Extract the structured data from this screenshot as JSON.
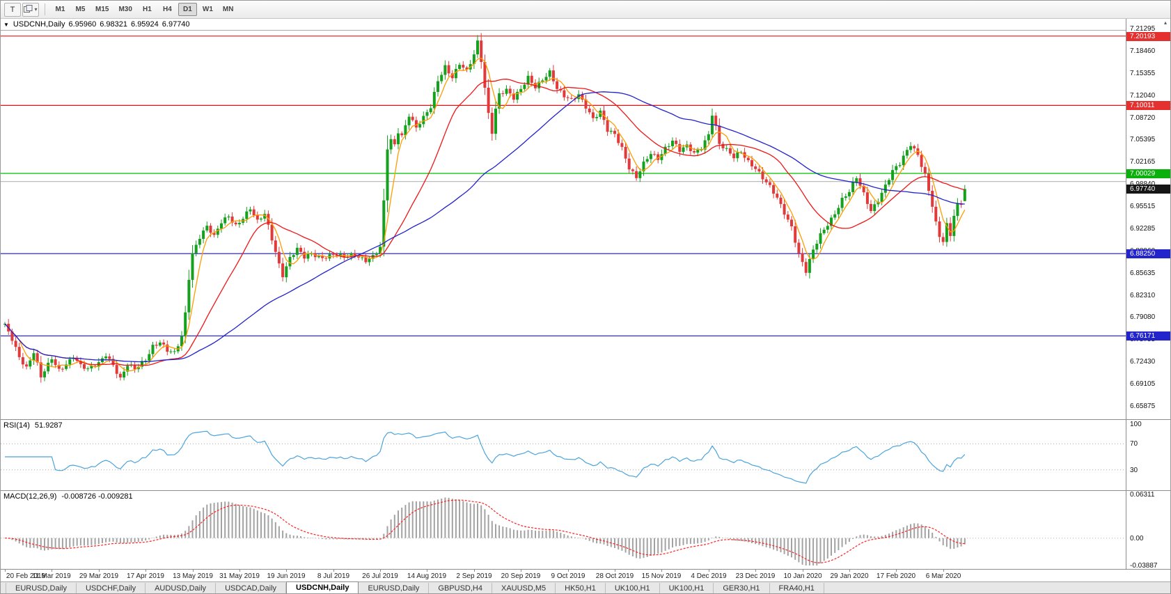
{
  "toolbar": {
    "t_button": "T",
    "cascade_dropdown": "▾",
    "timeframes": [
      "M1",
      "M5",
      "M15",
      "M30",
      "H1",
      "H4",
      "D1",
      "W1",
      "MN"
    ],
    "active_timeframe": "D1"
  },
  "chart_header": {
    "collapse_icon": "▼",
    "symbol": "USDCNH,Daily",
    "open": "6.95960",
    "high": "6.98321",
    "low": "6.95924",
    "close": "6.97740"
  },
  "chart_data": {
    "type": "candlestick",
    "symbol": "USDCNH",
    "timeframe": "Daily",
    "bars": 267,
    "price_ticks": [
      "7.21295",
      "7.18460",
      "7.15355",
      "7.12040",
      "7.08720",
      "7.05395",
      "7.02165",
      "6.98840",
      "6.95515",
      "6.92285",
      "6.88960",
      "6.85635",
      "6.82310",
      "6.79080",
      "6.75755",
      "6.72430",
      "6.69105",
      "6.65875"
    ],
    "current_price": "6.97740",
    "current_price_badge_color": "#161616",
    "candle_up_color": "#15a01e",
    "candle_down_color": "#e03a3a",
    "horizontal_lines": [
      {
        "price": 7.20193,
        "label": "7.20193",
        "color": "#ee1111",
        "badge": "#e53030"
      },
      {
        "price": 7.10011,
        "label": "7.10011",
        "color": "#ee1111",
        "badge": "#e53030"
      },
      {
        "price": 7.00029,
        "label": "7.00029",
        "color": "#00c000",
        "badge": "#0cb00c"
      },
      {
        "price": 6.9884,
        "label": "",
        "color": "#bcbcbc",
        "badge": null
      },
      {
        "price": 6.8825,
        "label": "6.88250",
        "color": "#1414d8",
        "badge": "#2424cc"
      },
      {
        "price": 6.76171,
        "label": "6.76171",
        "color": "#1414d8",
        "badge": "#2424cc"
      }
    ],
    "moving_averages": [
      {
        "period": 5,
        "color": "#ff9c00",
        "name": "fast-ma-orange"
      },
      {
        "period": 20,
        "color": "#f01616",
        "name": "mid-ma-red"
      },
      {
        "period": 55,
        "color": "#2222cc",
        "name": "slow-ma-blue"
      }
    ],
    "close_anchors": [
      [
        0,
        6.776
      ],
      [
        2,
        6.757
      ],
      [
        4,
        6.732
      ],
      [
        6,
        6.716
      ],
      [
        8,
        6.738
      ],
      [
        10,
        6.7
      ],
      [
        12,
        6.718
      ],
      [
        13,
        6.728
      ],
      [
        15,
        6.712
      ],
      [
        17,
        6.722
      ],
      [
        19,
        6.732
      ],
      [
        21,
        6.717
      ],
      [
        23,
        6.711
      ],
      [
        26,
        6.722
      ],
      [
        28,
        6.736
      ],
      [
        30,
        6.72
      ],
      [
        32,
        6.698
      ],
      [
        34,
        6.718
      ],
      [
        36,
        6.712
      ],
      [
        39,
        6.728
      ],
      [
        41,
        6.748
      ],
      [
        43,
        6.753
      ],
      [
        45,
        6.739
      ],
      [
        47,
        6.735
      ],
      [
        49,
        6.76
      ],
      [
        50,
        6.795
      ],
      [
        51,
        6.848
      ],
      [
        52,
        6.884
      ],
      [
        54,
        6.908
      ],
      [
        56,
        6.922
      ],
      [
        58,
        6.906
      ],
      [
        60,
        6.928
      ],
      [
        62,
        6.938
      ],
      [
        64,
        6.925
      ],
      [
        66,
        6.936
      ],
      [
        68,
        6.948
      ],
      [
        70,
        6.928
      ],
      [
        72,
        6.94
      ],
      [
        74,
        6.905
      ],
      [
        76,
        6.868
      ],
      [
        77,
        6.852
      ],
      [
        79,
        6.876
      ],
      [
        81,
        6.888
      ],
      [
        83,
        6.876
      ],
      [
        85,
        6.882
      ],
      [
        88,
        6.878
      ],
      [
        91,
        6.881
      ],
      [
        94,
        6.876
      ],
      [
        97,
        6.881
      ],
      [
        100,
        6.874
      ],
      [
        102,
        6.879
      ],
      [
        104,
        6.891
      ],
      [
        105,
        6.957
      ],
      [
        106,
        7.036
      ],
      [
        107,
        7.048
      ],
      [
        108,
        7.041
      ],
      [
        109,
        7.062
      ],
      [
        110,
        7.056
      ],
      [
        112,
        7.088
      ],
      [
        114,
        7.068
      ],
      [
        116,
        7.081
      ],
      [
        118,
        7.096
      ],
      [
        120,
        7.136
      ],
      [
        122,
        7.158
      ],
      [
        124,
        7.143
      ],
      [
        126,
        7.162
      ],
      [
        128,
        7.149
      ],
      [
        130,
        7.173
      ],
      [
        131,
        7.192
      ],
      [
        132,
        7.166
      ],
      [
        133,
        7.126
      ],
      [
        134,
        7.089
      ],
      [
        135,
        7.063
      ],
      [
        136,
        7.096
      ],
      [
        137,
        7.118
      ],
      [
        139,
        7.122
      ],
      [
        141,
        7.109
      ],
      [
        143,
        7.123
      ],
      [
        145,
        7.142
      ],
      [
        147,
        7.129
      ],
      [
        149,
        7.139
      ],
      [
        151,
        7.148
      ],
      [
        153,
        7.123
      ],
      [
        155,
        7.113
      ],
      [
        157,
        7.109
      ],
      [
        159,
        7.118
      ],
      [
        161,
        7.099
      ],
      [
        163,
        7.079
      ],
      [
        165,
        7.089
      ],
      [
        167,
        7.063
      ],
      [
        169,
        7.059
      ],
      [
        171,
        7.039
      ],
      [
        173,
        7.009
      ],
      [
        175,
        6.993
      ],
      [
        177,
        7.013
      ],
      [
        179,
        7.029
      ],
      [
        181,
        7.023
      ],
      [
        183,
        7.039
      ],
      [
        185,
        7.049
      ],
      [
        187,
        7.033
      ],
      [
        189,
        7.039
      ],
      [
        191,
        7.029
      ],
      [
        193,
        7.039
      ],
      [
        195,
        7.059
      ],
      [
        196,
        7.089
      ],
      [
        197,
        7.069
      ],
      [
        198,
        7.043
      ],
      [
        200,
        7.033
      ],
      [
        202,
        7.023
      ],
      [
        204,
        7.033
      ],
      [
        206,
        7.019
      ],
      [
        208,
        7.009
      ],
      [
        210,
        6.993
      ],
      [
        212,
        6.979
      ],
      [
        214,
        6.963
      ],
      [
        216,
        6.943
      ],
      [
        218,
        6.923
      ],
      [
        220,
        6.883
      ],
      [
        222,
        6.856
      ],
      [
        224,
        6.886
      ],
      [
        226,
        6.909
      ],
      [
        228,
        6.926
      ],
      [
        230,
        6.943
      ],
      [
        232,
        6.963
      ],
      [
        234,
        6.973
      ],
      [
        236,
        6.993
      ],
      [
        238,
        6.969
      ],
      [
        240,
        6.946
      ],
      [
        242,
        6.963
      ],
      [
        244,
        6.983
      ],
      [
        246,
        7.003
      ],
      [
        248,
        7.013
      ],
      [
        250,
        7.033
      ],
      [
        251,
        7.043
      ],
      [
        253,
        7.029
      ],
      [
        255,
        6.999
      ],
      [
        256,
        6.976
      ],
      [
        257,
        6.953
      ],
      [
        258,
        6.926
      ],
      [
        259,
        6.906
      ],
      [
        260,
        6.899
      ],
      [
        261,
        6.923
      ],
      [
        262,
        6.909
      ],
      [
        263,
        6.939
      ],
      [
        264,
        6.955
      ],
      [
        265,
        6.958
      ],
      [
        266,
        6.9774
      ]
    ],
    "last_bar": {
      "open": 6.9596,
      "high": 6.98321,
      "low": 6.95924,
      "close": 6.9774
    },
    "date_labels": [
      {
        "i": 0,
        "label": "20 Feb 2019"
      },
      {
        "i": 13,
        "label": "11 Mar 2019"
      },
      {
        "i": 26,
        "label": "29 Mar 2019"
      },
      {
        "i": 39,
        "label": "17 Apr 2019"
      },
      {
        "i": 52,
        "label": "13 May 2019"
      },
      {
        "i": 65,
        "label": "31 May 2019"
      },
      {
        "i": 78,
        "label": "19 Jun 2019"
      },
      {
        "i": 91,
        "label": "8 Jul 2019"
      },
      {
        "i": 104,
        "label": "26 Jul 2019"
      },
      {
        "i": 117,
        "label": "14 Aug 2019"
      },
      {
        "i": 130,
        "label": "2 Sep 2019"
      },
      {
        "i": 143,
        "label": "20 Sep 2019"
      },
      {
        "i": 156,
        "label": "9 Oct 2019"
      },
      {
        "i": 169,
        "label": "28 Oct 2019"
      },
      {
        "i": 182,
        "label": "15 Nov 2019"
      },
      {
        "i": 195,
        "label": "4 Dec 2019"
      },
      {
        "i": 208,
        "label": "23 Dec 2019"
      },
      {
        "i": 221,
        "label": "10 Jan 2020"
      },
      {
        "i": 234,
        "label": "29 Jan 2020"
      },
      {
        "i": 247,
        "label": "17 Feb 2020"
      },
      {
        "i": 260,
        "label": "6 Mar 2020"
      }
    ],
    "rsi": {
      "label": "RSI(14)",
      "value": "51.9287",
      "period": 14,
      "scale_labels": [
        "100",
        "70",
        "30"
      ],
      "level_values": [
        100,
        70,
        30
      ],
      "color": "#4aa4dc"
    },
    "macd": {
      "label": "MACD(12,26,9)",
      "value": "-0.008726 -0.009281",
      "fast": 12,
      "slow": 26,
      "signal": 9,
      "scale_labels": [
        "0.06311",
        "0.00",
        "-0.03887"
      ],
      "scale_values": [
        0.06311,
        0,
        -0.03887
      ],
      "histogram_color": "#a2a2a2",
      "signal_color": "#ff2020"
    }
  },
  "tabs": {
    "items": [
      "EURUSD,Daily",
      "USDCHF,Daily",
      "AUDUSD,Daily",
      "USDCAD,Daily",
      "USDCNH,Daily",
      "EURUSD,Daily",
      "GBPUSD,H4",
      "XAUUSD,M5",
      "HK50,H1",
      "UK100,H1",
      "UK100,H1",
      "GER30,H1",
      "FRA40,H1"
    ],
    "active_index": 4
  }
}
